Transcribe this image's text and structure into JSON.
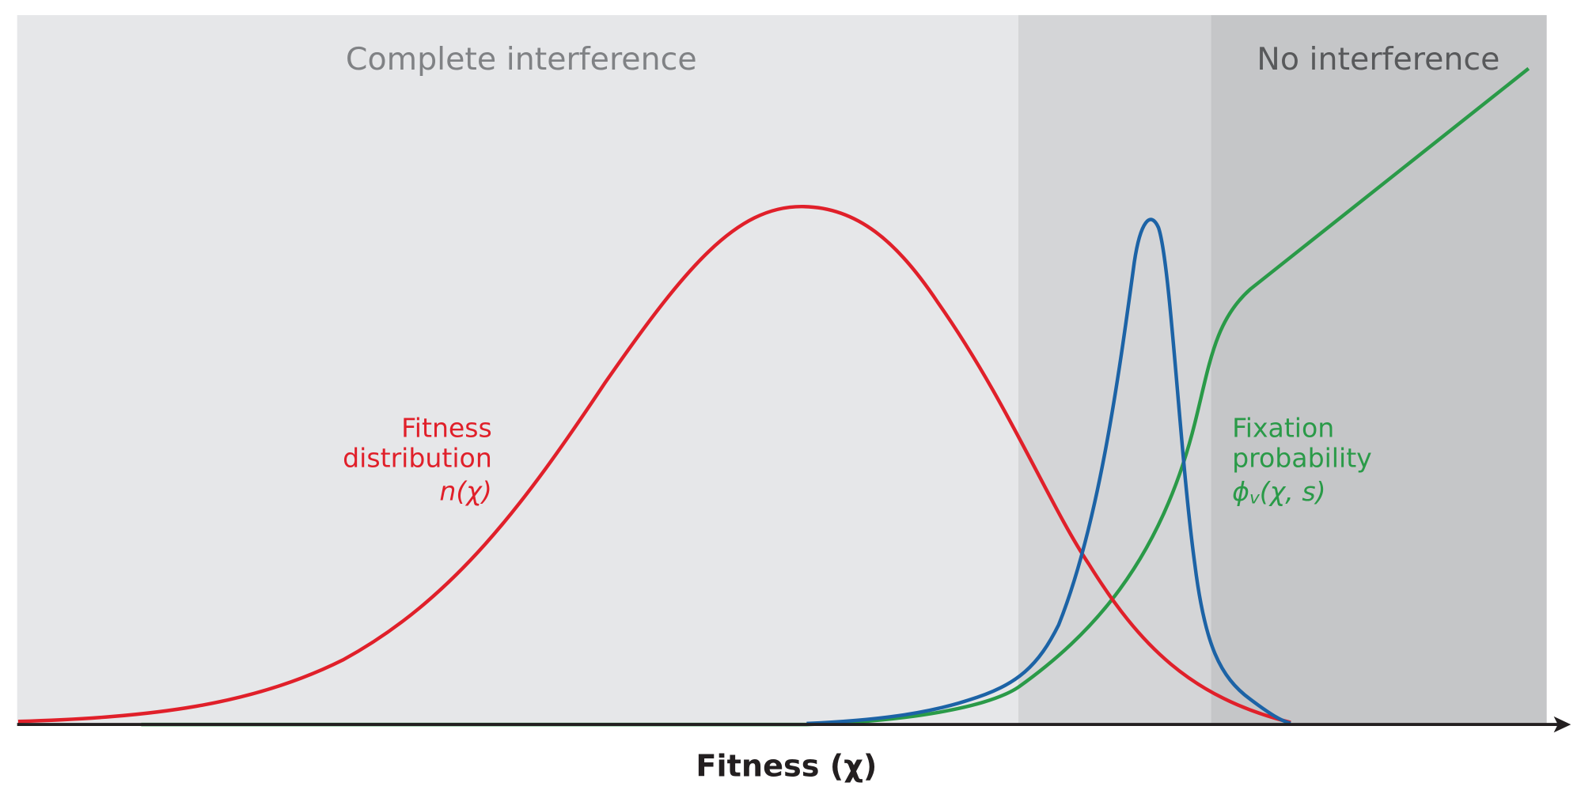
{
  "regions": {
    "complete": "Complete interference",
    "none": "No interference"
  },
  "fitness_distribution": {
    "lines": [
      "Fitness",
      "distribution"
    ],
    "symbol": "n(χ)"
  },
  "fixation_probability": {
    "lines": [
      "Fixation",
      "probability"
    ],
    "symbol": "ϕ",
    "subscript": "v",
    "args": "(χ, s)"
  },
  "x_axis_label": "Fitness (χ)"
}
